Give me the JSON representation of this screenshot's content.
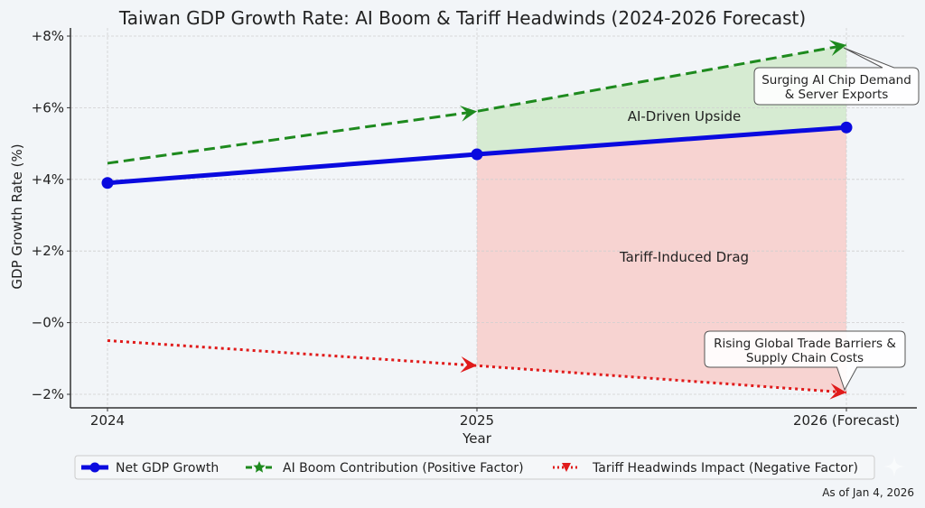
{
  "chart_data": {
    "type": "line",
    "title": "Taiwan GDP Growth Rate: AI Boom & Tariff Headwinds (2024-2026 Forecast)",
    "xlabel": "Year",
    "ylabel": "GDP Growth Rate (%)",
    "categories": [
      "2024",
      "2025",
      "2026 (Forecast)"
    ],
    "ylim": [
      -2.4,
      8.1
    ],
    "yticks": [
      8,
      6,
      4,
      2,
      0,
      -2
    ],
    "ytick_labels": [
      "+8%",
      "+6%",
      "+4%",
      "+2%",
      "−0%",
      "−2%"
    ],
    "grid": true,
    "legend_position": "bottom-center",
    "series": [
      {
        "name": "Net GDP Growth",
        "values": [
          3.9,
          4.7,
          5.45
        ],
        "color": "#0a0adf",
        "style": "solid",
        "marker": "circle"
      },
      {
        "name": "AI Boom Contribution (Positive Factor)",
        "values": [
          4.45,
          5.9,
          7.75
        ],
        "color": "#1e8a1e",
        "style": "dashed",
        "marker": "star"
      },
      {
        "name": "Tariff Headwinds Impact (Negative Factor)",
        "values": [
          -0.5,
          -1.2,
          -1.95
        ],
        "color": "#e01b1b",
        "style": "dotted",
        "marker": "triangle-down"
      }
    ],
    "shaded_regions": [
      {
        "label": "AI-Driven Upside",
        "from_category": "2025",
        "to_category": "2026 (Forecast)",
        "between": [
          "AI Boom Contribution (Positive Factor)",
          "Net GDP Growth"
        ],
        "color": "#d4ead0"
      },
      {
        "label": "Tariff-Induced Drag",
        "from_category": "2025",
        "to_category": "2026 (Forecast)",
        "between": [
          "Net GDP Growth",
          "Tariff Headwinds Impact (Negative Factor)"
        ],
        "color": "#f7d1cf"
      }
    ],
    "annotations": [
      {
        "text_lines": [
          "Surging AI Chip Demand",
          "& Server Exports"
        ],
        "points_to": {
          "category": "2026 (Forecast)",
          "series": "AI Boom Contribution (Positive Factor)"
        }
      },
      {
        "text_lines": [
          "Rising Global Trade Barriers &",
          "Supply Chain Costs"
        ],
        "points_to": {
          "category": "2026 (Forecast)",
          "series": "Tariff Headwinds Impact (Negative Factor)"
        }
      }
    ]
  },
  "footer": {
    "note": "As of Jan 4, 2026"
  }
}
